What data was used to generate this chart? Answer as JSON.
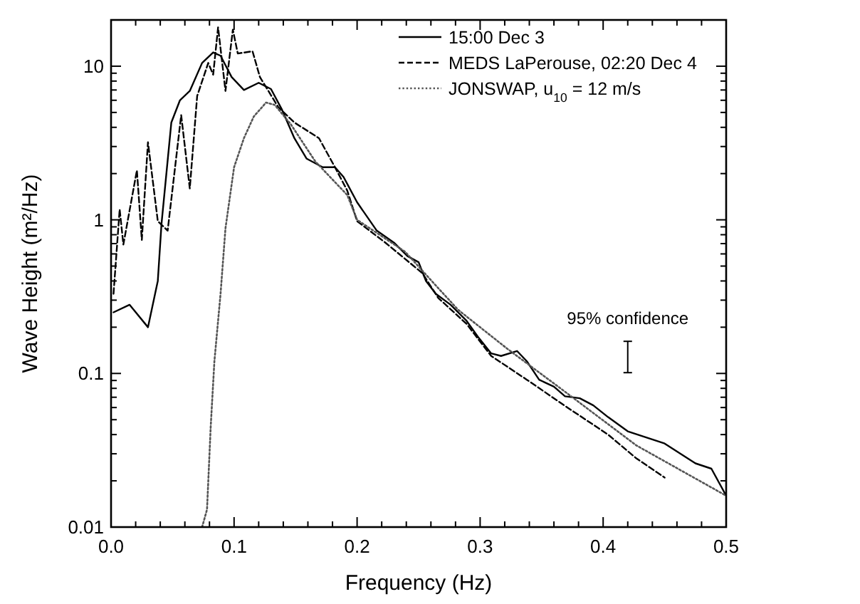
{
  "chart_data": {
    "type": "line",
    "xlabel": "Frequency (Hz)",
    "ylabel": "Wave Height (m²/Hz)",
    "log": "y",
    "xlim": [
      0,
      0.5
    ],
    "ylim": [
      0.01,
      20
    ],
    "xticks": [
      {
        "value": 0,
        "label": "0.0"
      },
      {
        "value": 0.02,
        "label": null
      },
      {
        "value": 0.04,
        "label": null
      },
      {
        "value": 0.06,
        "label": null
      },
      {
        "value": 0.08,
        "label": null
      },
      {
        "value": 0.1,
        "label": "0.1"
      },
      {
        "value": 0.12,
        "label": null
      },
      {
        "value": 0.14,
        "label": null
      },
      {
        "value": 0.16,
        "label": null
      },
      {
        "value": 0.18,
        "label": null
      },
      {
        "value": 0.2,
        "label": "0.2"
      },
      {
        "value": 0.22,
        "label": null
      },
      {
        "value": 0.24,
        "label": null
      },
      {
        "value": 0.26,
        "label": null
      },
      {
        "value": 0.28,
        "label": null
      },
      {
        "value": 0.3,
        "label": "0.3"
      },
      {
        "value": 0.32,
        "label": null
      },
      {
        "value": 0.34,
        "label": null
      },
      {
        "value": 0.36,
        "label": null
      },
      {
        "value": 0.38,
        "label": null
      },
      {
        "value": 0.4,
        "label": "0.4"
      },
      {
        "value": 0.42,
        "label": null
      },
      {
        "value": 0.44,
        "label": null
      },
      {
        "value": 0.46,
        "label": null
      },
      {
        "value": 0.48,
        "label": null
      },
      {
        "value": 0.5,
        "label": "0.5"
      }
    ],
    "yticks": [
      0.01,
      {
        "value": 0.02,
        "label": null
      },
      {
        "value": 0.03,
        "label": null
      },
      {
        "value": 0.04,
        "label": null
      },
      {
        "value": 0.05,
        "label": null
      },
      {
        "value": 0.06,
        "label": null
      },
      {
        "value": 0.07,
        "label": null
      },
      {
        "value": 0.08,
        "label": null
      },
      {
        "value": 0.09,
        "label": null
      },
      0.1,
      {
        "value": 0.2,
        "label": null
      },
      {
        "value": 0.3,
        "label": null
      },
      {
        "value": 0.4,
        "label": null
      },
      {
        "value": 0.5,
        "label": null
      },
      {
        "value": 0.6,
        "label": null
      },
      {
        "value": 0.7,
        "label": null
      },
      {
        "value": 0.8,
        "label": null
      },
      {
        "value": 0.9,
        "label": null
      },
      1,
      {
        "value": 2,
        "label": null
      },
      {
        "value": 3,
        "label": null
      },
      {
        "value": 4,
        "label": null
      },
      {
        "value": 5,
        "label": null
      },
      {
        "value": 6,
        "label": null
      },
      {
        "value": 7,
        "label": null
      },
      {
        "value": 8,
        "label": null
      },
      {
        "value": 9,
        "label": null
      },
      10,
      {
        "value": 20,
        "label": null
      }
    ],
    "grid": false,
    "legend": "top right",
    "annotations": [
      "95% confidence"
    ],
    "series": [
      {
        "name": "15:00 Dec 3",
        "color": "#000000",
        "line_style": "solid",
        "x": [
          0.002,
          0.015,
          0.03,
          0.038,
          0.041,
          0.049,
          0.056,
          0.064,
          0.074,
          0.083,
          0.089,
          0.098,
          0.108,
          0.12,
          0.13,
          0.139,
          0.149,
          0.159,
          0.172,
          0.182,
          0.189,
          0.2,
          0.216,
          0.23,
          0.241,
          0.25,
          0.256,
          0.264,
          0.276,
          0.289,
          0.299,
          0.309,
          0.317,
          0.33,
          0.338,
          0.348,
          0.36,
          0.369,
          0.381,
          0.392,
          0.404,
          0.42,
          0.45,
          0.475,
          0.488,
          0.5
        ],
        "values": [
          0.25,
          0.28,
          0.2,
          0.4,
          0.94,
          4.3,
          6,
          6.9,
          10.5,
          12.3,
          11.7,
          8.5,
          7,
          7.8,
          7.1,
          5.2,
          3.4,
          2.5,
          2.2,
          2.2,
          1.9,
          1.3,
          0.85,
          0.71,
          0.58,
          0.53,
          0.4,
          0.33,
          0.28,
          0.22,
          0.17,
          0.135,
          0.13,
          0.14,
          0.12,
          0.091,
          0.082,
          0.071,
          0.069,
          0.062,
          0.052,
          0.042,
          0.035,
          0.026,
          0.024,
          0.016
        ]
      },
      {
        "name": "MEDS LaPerouse, 02:20 Dec 4",
        "color": "#000000",
        "line_style": "dashed",
        "x": [
          0.002,
          0.007,
          0.01,
          0.021,
          0.025,
          0.03,
          0.038,
          0.046,
          0.057,
          0.064,
          0.07,
          0.079,
          0.083,
          0.087,
          0.093,
          0.099,
          0.103,
          0.115,
          0.121,
          0.136,
          0.149,
          0.169,
          0.182,
          0.192,
          0.2,
          0.223,
          0.253,
          0.266,
          0.289,
          0.309,
          0.338,
          0.371,
          0.404,
          0.427,
          0.45
        ],
        "values": [
          0.33,
          1.17,
          0.69,
          2.1,
          0.74,
          3.2,
          0.98,
          0.85,
          4.8,
          1.6,
          6.4,
          10.5,
          8.8,
          17.9,
          6.9,
          17.3,
          12.1,
          12.5,
          8.5,
          5.4,
          4.3,
          3.4,
          2.2,
          1.55,
          0.98,
          0.71,
          0.45,
          0.31,
          0.21,
          0.13,
          0.091,
          0.06,
          0.04,
          0.028,
          0.021
        ]
      },
      {
        "name": "JONSWAP, u$_{10}$ = 12 m/s",
        "color": "#555555",
        "line_style": "dotted",
        "x": [
          0.074,
          0.078,
          0.081,
          0.084,
          0.089,
          0.093,
          0.1,
          0.108,
          0.116,
          0.126,
          0.133,
          0.146,
          0.166,
          0.192,
          0.2,
          0.239,
          0.282,
          0.322,
          0.371,
          0.427,
          0.5
        ],
        "values": [
          0.01,
          0.013,
          0.045,
          0.12,
          0.33,
          0.88,
          2.2,
          3.4,
          4.7,
          5.8,
          5.6,
          4.2,
          2.4,
          1.45,
          1,
          0.62,
          0.26,
          0.145,
          0.074,
          0.034,
          0.016
        ]
      }
    ]
  }
}
